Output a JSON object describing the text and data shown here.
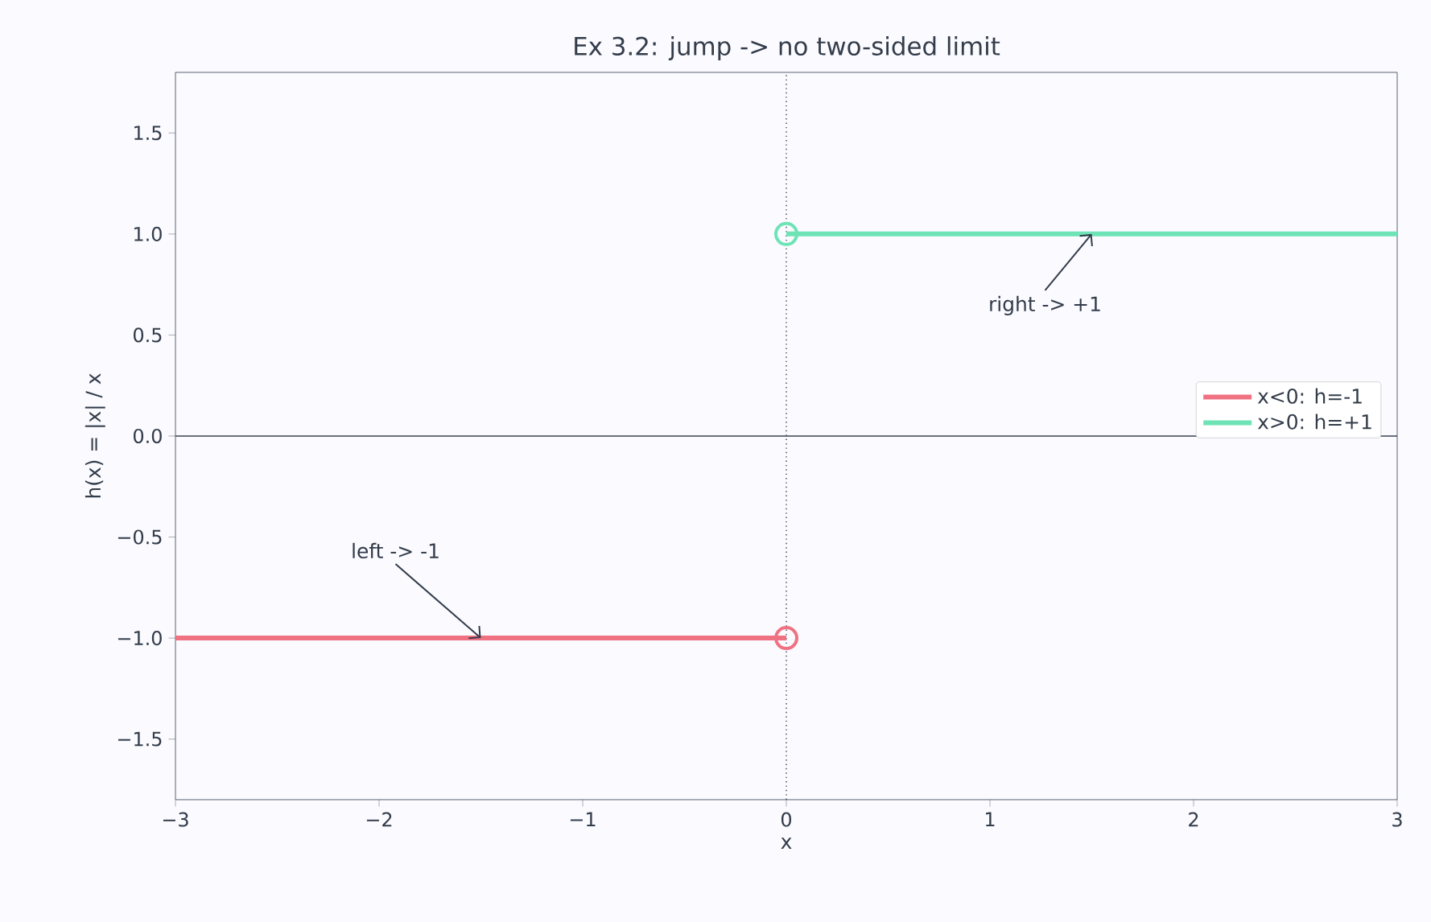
{
  "chart_data": {
    "type": "line",
    "title": "Ex 3.2: jump  ->  no two-sided limit",
    "xlabel": "x",
    "ylabel": "h(x) = |x| / x",
    "series": [
      {
        "name": "x<0:  h=-1",
        "color": "#f07282",
        "x": [
          -3,
          0
        ],
        "values": [
          -1,
          -1
        ]
      },
      {
        "name": "x>0:  h=+1",
        "color": "#6ee3b6",
        "x": [
          0,
          3
        ],
        "values": [
          1,
          1
        ]
      },
      {
        "type": "scatter",
        "marker": "circle",
        "color": "#f07282",
        "x": [
          0
        ],
        "values": [
          -1
        ]
      },
      {
        "type": "scatter",
        "marker": "circle",
        "color": "#6ee3b6",
        "x": [
          0
        ],
        "values": [
          1
        ]
      }
    ],
    "xlim": [
      -3,
      3
    ],
    "ylim": [
      -1.8,
      1.8
    ],
    "xticks": [
      {
        "value": -3,
        "label": "−3"
      },
      {
        "value": -2,
        "label": "−2"
      },
      {
        "value": -1,
        "label": "−1"
      },
      0,
      1,
      2,
      3
    ],
    "yticks": [
      {
        "value": -1.5,
        "label": "−1.5"
      },
      {
        "value": -1.0,
        "label": "−1.0"
      },
      {
        "value": -0.5,
        "label": "−0.5"
      },
      {
        "value": 0.0,
        "label": "0.0"
      },
      {
        "value": 0.5,
        "label": "0.5"
      },
      {
        "value": 1.0,
        "label": "1.0"
      },
      {
        "value": 1.5,
        "label": "1.5"
      }
    ],
    "ref_lines": [
      {
        "axis": "y",
        "value": 0,
        "color": "#3a4250",
        "line_style": "solid"
      },
      {
        "axis": "x",
        "value": 0,
        "color": "#3a4250",
        "line_style": "dotted"
      }
    ],
    "annotations": [
      {
        "text": "left -> -1",
        "x": -1.5,
        "y": -1
      },
      {
        "text": "right -> +1",
        "x": 1.5,
        "y": 1
      }
    ],
    "grid": false,
    "legend": "right"
  }
}
